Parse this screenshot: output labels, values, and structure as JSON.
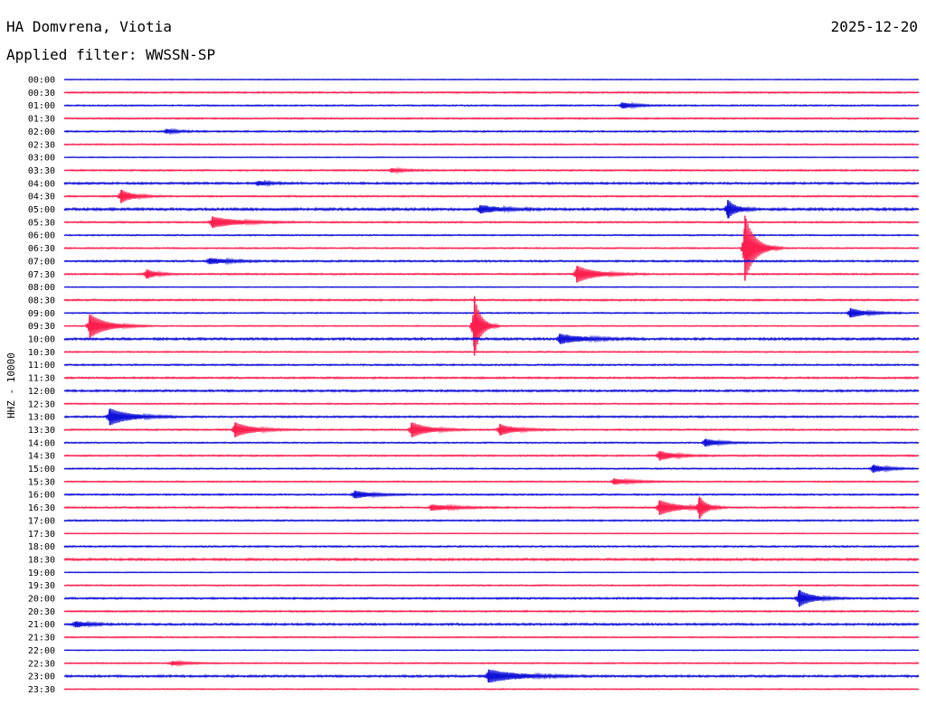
{
  "header": {
    "station": "HA Domvrena, Viotia",
    "date": "2025-12-20",
    "filter": "Applied filter: WWSSN-SP"
  },
  "colors": {
    "even_trace": "#1010d8",
    "odd_trace": "#ff1f4f",
    "background": "#ffffff"
  },
  "chart_data": {
    "type": "line",
    "title": "HA Domvrena, Viotia",
    "subtitle": "Applied filter: WWSSN-SP",
    "ylabel": "HHZ - 10000",
    "xlabel": "",
    "trace_duration_minutes": 30,
    "row_labels": [
      "00:00",
      "00:30",
      "01:00",
      "01:30",
      "02:00",
      "02:30",
      "03:00",
      "03:30",
      "04:00",
      "04:30",
      "05:00",
      "05:30",
      "06:00",
      "06:30",
      "07:00",
      "07:30",
      "08:00",
      "08:30",
      "09:00",
      "09:30",
      "10:00",
      "10:30",
      "11:00",
      "11:30",
      "12:00",
      "12:30",
      "13:00",
      "13:30",
      "14:00",
      "14:30",
      "15:00",
      "15:30",
      "16:00",
      "16:30",
      "17:00",
      "17:30",
      "18:00",
      "18:30",
      "19:00",
      "19:30",
      "20:00",
      "20:30",
      "21:00",
      "21:30",
      "22:00",
      "22:30",
      "23:00",
      "23:30"
    ],
    "row_noise": [
      0.3,
      0.6,
      0.5,
      0.6,
      0.6,
      0.5,
      0.3,
      0.6,
      0.8,
      0.6,
      1.0,
      0.6,
      0.5,
      0.5,
      0.7,
      0.6,
      0.3,
      0.7,
      0.5,
      0.4,
      0.9,
      0.5,
      0.6,
      0.7,
      0.8,
      0.5,
      0.7,
      0.6,
      0.5,
      0.6,
      0.5,
      0.5,
      0.6,
      0.6,
      0.6,
      0.3,
      0.6,
      0.9,
      0.3,
      0.5,
      0.7,
      0.6,
      0.8,
      0.5,
      0.3,
      0.5,
      0.8,
      0.4
    ],
    "events": [
      {
        "row": 2,
        "minute": 19.6,
        "amp": 3,
        "dur": 0.8
      },
      {
        "row": 4,
        "minute": 3.6,
        "amp": 2,
        "dur": 0.7
      },
      {
        "row": 7,
        "minute": 11.5,
        "amp": 2,
        "dur": 0.8
      },
      {
        "row": 8,
        "minute": 6.8,
        "amp": 2,
        "dur": 0.8
      },
      {
        "row": 9,
        "minute": 2.0,
        "amp": 7,
        "dur": 0.7
      },
      {
        "row": 10,
        "minute": 14.6,
        "amp": 4,
        "dur": 1.2
      },
      {
        "row": 10,
        "minute": 23.3,
        "amp": 10,
        "dur": 0.5
      },
      {
        "row": 11,
        "minute": 5.2,
        "amp": 6,
        "dur": 1.5
      },
      {
        "row": 13,
        "minute": 23.9,
        "amp": 36,
        "dur": 0.6
      },
      {
        "row": 14,
        "minute": 5.1,
        "amp": 3,
        "dur": 1.2
      },
      {
        "row": 15,
        "minute": 2.9,
        "amp": 5,
        "dur": 0.6
      },
      {
        "row": 15,
        "minute": 18.0,
        "amp": 9,
        "dur": 1.1
      },
      {
        "row": 19,
        "minute": 0.9,
        "amp": 13,
        "dur": 1.0
      },
      {
        "row": 19,
        "minute": 14.4,
        "amp": 33,
        "dur": 0.4
      },
      {
        "row": 18,
        "minute": 27.6,
        "amp": 5,
        "dur": 0.9
      },
      {
        "row": 20,
        "minute": 17.4,
        "amp": 5,
        "dur": 1.4
      },
      {
        "row": 26,
        "minute": 1.6,
        "amp": 9,
        "dur": 1.2
      },
      {
        "row": 27,
        "minute": 6.0,
        "amp": 8,
        "dur": 1.0
      },
      {
        "row": 27,
        "minute": 12.2,
        "amp": 8,
        "dur": 1.0
      },
      {
        "row": 27,
        "minute": 15.3,
        "amp": 6,
        "dur": 0.9
      },
      {
        "row": 29,
        "minute": 20.9,
        "amp": 5,
        "dur": 0.9
      },
      {
        "row": 28,
        "minute": 22.5,
        "amp": 4,
        "dur": 0.9
      },
      {
        "row": 30,
        "minute": 28.4,
        "amp": 4,
        "dur": 0.8
      },
      {
        "row": 31,
        "minute": 19.3,
        "amp": 3,
        "dur": 1.1
      },
      {
        "row": 32,
        "minute": 10.2,
        "amp": 4,
        "dur": 1.0
      },
      {
        "row": 33,
        "minute": 20.9,
        "amp": 8,
        "dur": 1.1
      },
      {
        "row": 33,
        "minute": 22.3,
        "amp": 12,
        "dur": 0.4
      },
      {
        "row": 33,
        "minute": 12.9,
        "amp": 3,
        "dur": 1.4
      },
      {
        "row": 40,
        "minute": 25.8,
        "amp": 9,
        "dur": 0.8
      },
      {
        "row": 42,
        "minute": 0.4,
        "amp": 3,
        "dur": 0.8
      },
      {
        "row": 46,
        "minute": 14.9,
        "amp": 7,
        "dur": 1.7
      },
      {
        "row": 45,
        "minute": 3.8,
        "amp": 2,
        "dur": 0.9
      }
    ]
  }
}
